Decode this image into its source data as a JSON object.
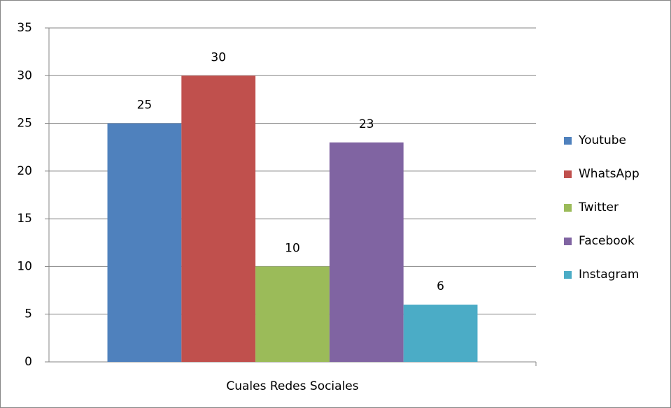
{
  "chart_data": {
    "type": "bar",
    "categories": [
      "Cuales Redes Sociales"
    ],
    "series": [
      {
        "name": "Youtube",
        "color": "#4f81bd",
        "values": [
          25
        ]
      },
      {
        "name": "WhatsApp",
        "color": "#c0504d",
        "values": [
          30
        ]
      },
      {
        "name": "Twitter",
        "color": "#9bbb59",
        "values": [
          10
        ]
      },
      {
        "name": "Facebook",
        "color": "#8064a2",
        "values": [
          23
        ]
      },
      {
        "name": "Instagram",
        "color": "#4bacc6",
        "values": [
          6
        ]
      }
    ],
    "ylim": [
      0,
      35
    ],
    "yticks": [
      0,
      5,
      10,
      15,
      20,
      25,
      30,
      35
    ],
    "grid": true,
    "legend": "right"
  }
}
